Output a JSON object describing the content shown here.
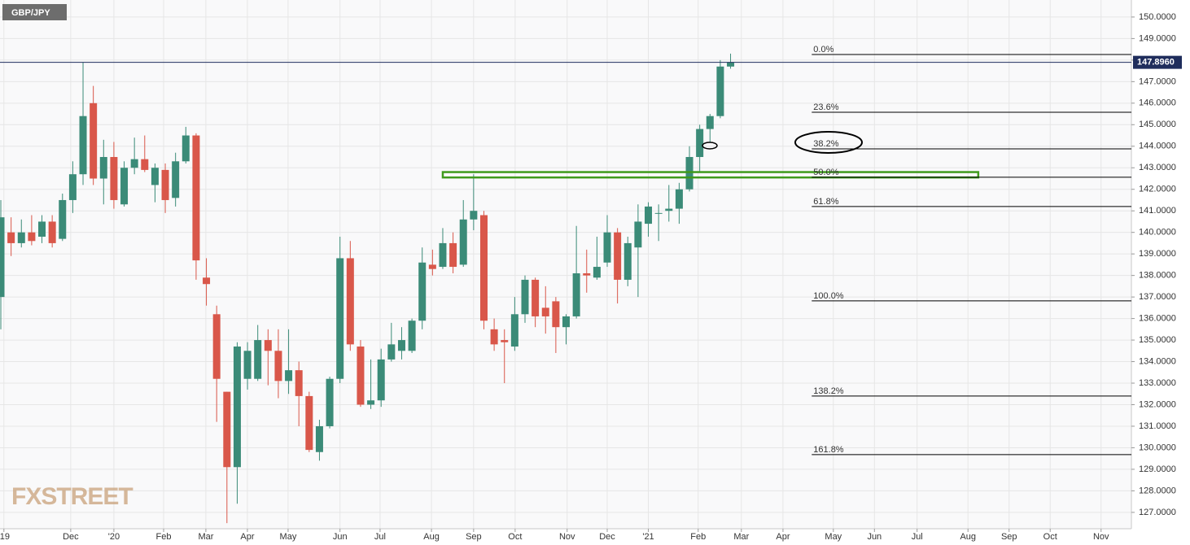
{
  "chart_data": {
    "type": "candlestick",
    "title": "GBP/JPY",
    "watermark": "FXSTREET",
    "up_color": "#3b8b78",
    "down_color": "#d9574a",
    "open": [
      137.0,
      140.0,
      139.5,
      140.0,
      139.8,
      140.5,
      139.7,
      141.5,
      142.7,
      146.0,
      142.5,
      143.5,
      141.3,
      143.0,
      143.4,
      142.2,
      142.9,
      141.6,
      143.3,
      144.5,
      137.9,
      136.2,
      132.6,
      129.1,
      133.2,
      133.2,
      135.0,
      134.5,
      133.1,
      133.6,
      132.4,
      129.8,
      131.0,
      133.2,
      138.8,
      134.7,
      132.0,
      132.2,
      134.1,
      134.5,
      134.5,
      135.9,
      138.5,
      138.4,
      139.5,
      138.5,
      140.6,
      140.8,
      135.5,
      135.0,
      134.7,
      136.2,
      137.8,
      136.5,
      136.8,
      135.6,
      136.1,
      138.1,
      137.9,
      138.6,
      140.0,
      137.8,
      139.3,
      140.4,
      140.9,
      141.0,
      141.1,
      142.0,
      143.5,
      144.8,
      145.4,
      147.7
    ],
    "high": [
      141.5,
      140.7,
      140.6,
      140.8,
      140.8,
      140.8,
      141.8,
      143.3,
      147.9,
      146.8,
      144.3,
      144.2,
      143.3,
      144.4,
      144.5,
      143.2,
      143.2,
      143.7,
      144.9,
      144.6,
      138.8,
      136.6,
      132.6,
      134.9,
      134.9,
      135.7,
      135.5,
      135.5,
      135.5,
      134.0,
      132.6,
      131.3,
      133.3,
      139.8,
      139.6,
      135.0,
      134.1,
      134.6,
      135.8,
      135.6,
      136.0,
      139.3,
      139.2,
      140.2,
      140.0,
      141.5,
      142.7,
      141.0,
      136.0,
      135.5,
      137.0,
      138.0,
      137.9,
      137.5,
      137.0,
      136.2,
      140.3,
      139.2,
      139.8,
      140.8,
      140.2,
      139.8,
      141.3,
      141.4,
      141.3,
      142.2,
      142.3,
      144.0,
      145.0,
      145.5,
      148.0,
      148.3
    ],
    "low": [
      135.5,
      138.9,
      139.3,
      139.4,
      139.5,
      139.3,
      139.6,
      140.9,
      142.2,
      142.2,
      141.3,
      141.1,
      141.2,
      142.7,
      142.8,
      141.4,
      140.9,
      141.2,
      143.2,
      137.8,
      136.6,
      131.2,
      126.5,
      127.4,
      132.7,
      133.1,
      132.9,
      132.3,
      132.5,
      131.0,
      129.8,
      129.4,
      130.9,
      133.0,
      134.5,
      131.9,
      131.8,
      131.9,
      134.0,
      134.1,
      134.4,
      135.5,
      138.0,
      138.3,
      138.1,
      138.4,
      140.1,
      135.5,
      134.5,
      133.0,
      134.5,
      135.8,
      135.6,
      135.3,
      134.4,
      134.8,
      136.0,
      137.2,
      137.8,
      138.4,
      136.7,
      137.5,
      137.0,
      139.8,
      139.6,
      140.5,
      140.4,
      141.9,
      142.8,
      144.2,
      145.3,
      147.6
    ],
    "close": [
      140.7,
      139.5,
      140.0,
      139.6,
      140.5,
      139.5,
      141.5,
      142.7,
      145.4,
      142.5,
      143.5,
      141.5,
      143.0,
      143.4,
      142.9,
      143.0,
      141.5,
      143.3,
      144.5,
      138.7,
      137.6,
      133.2,
      129.1,
      134.7,
      134.5,
      135.0,
      134.5,
      133.1,
      133.6,
      132.4,
      129.9,
      131.0,
      133.2,
      138.8,
      134.8,
      132.0,
      132.2,
      134.1,
      134.8,
      135.0,
      135.9,
      138.6,
      138.3,
      139.5,
      138.4,
      140.6,
      141.0,
      135.9,
      134.8,
      134.9,
      136.2,
      137.8,
      136.1,
      136.1,
      135.6,
      136.1,
      138.1,
      138.0,
      138.4,
      140.0,
      137.8,
      139.5,
      140.5,
      141.2,
      140.9,
      141.1,
      142.0,
      143.5,
      144.8,
      145.4,
      147.7,
      147.9
    ],
    "xlim": [
      -0.08,
      110
    ],
    "xticks": [
      {
        "value": 0.3,
        "label": "'19"
      },
      {
        "value": 6.8,
        "label": "Dec"
      },
      {
        "value": 11.0,
        "label": "'20"
      },
      {
        "value": 15.84,
        "label": "Feb"
      },
      {
        "value": 19.95,
        "label": "Mar"
      },
      {
        "value": 23.99,
        "label": "Apr"
      },
      {
        "value": 27.95,
        "label": "May"
      },
      {
        "value": 33.0,
        "label": "Jun"
      },
      {
        "value": 36.9,
        "label": "Jul"
      },
      {
        "value": 41.9,
        "label": "Aug"
      },
      {
        "value": 46.0,
        "label": "Sep"
      },
      {
        "value": 50.04,
        "label": "Oct"
      },
      {
        "value": 55.1,
        "label": "Nov"
      },
      {
        "value": 59.0,
        "label": "Dec"
      },
      {
        "value": 63.0,
        "label": "'21"
      },
      {
        "value": 67.85,
        "label": "Feb"
      },
      {
        "value": 72.05,
        "label": "Mar"
      },
      {
        "value": 76.1,
        "label": "Apr"
      },
      {
        "value": 81.0,
        "label": "May"
      },
      {
        "value": 85.0,
        "label": "Jun"
      },
      {
        "value": 89.15,
        "label": "Jul"
      },
      {
        "value": 94.1,
        "label": "Aug"
      },
      {
        "value": 98.1,
        "label": "Sep"
      },
      {
        "value": 102.1,
        "label": "Oct"
      },
      {
        "value": 107.05,
        "label": "Nov"
      }
    ],
    "ylim": [
      126.24,
      150.79
    ],
    "yticks": [
      {
        "value": 127,
        "label": "127.0000"
      },
      {
        "value": 128,
        "label": "128.0000"
      },
      {
        "value": 129,
        "label": "129.0000"
      },
      {
        "value": 130,
        "label": "130.0000"
      },
      {
        "value": 131,
        "label": "131.0000"
      },
      {
        "value": 132,
        "label": "132.0000"
      },
      {
        "value": 133,
        "label": "133.0000"
      },
      {
        "value": 134,
        "label": "134.0000"
      },
      {
        "value": 135,
        "label": "135.0000"
      },
      {
        "value": 136,
        "label": "136.0000"
      },
      {
        "value": 137,
        "label": "137.0000"
      },
      {
        "value": 138,
        "label": "138.0000"
      },
      {
        "value": 139,
        "label": "139.0000"
      },
      {
        "value": 140,
        "label": "140.0000"
      },
      {
        "value": 141,
        "label": "141.0000"
      },
      {
        "value": 142,
        "label": "142.0000"
      },
      {
        "value": 143,
        "label": "143.0000"
      },
      {
        "value": 144,
        "label": "144.0000"
      },
      {
        "value": 145,
        "label": "145.0000"
      },
      {
        "value": 146,
        "label": "146.0000"
      },
      {
        "value": 147,
        "label": "147.0000"
      },
      {
        "value": 148,
        "label": "148.0000"
      },
      {
        "value": 149,
        "label": "149.0000"
      },
      {
        "value": 150,
        "label": "150.0000"
      }
    ],
    "grid": true,
    "last_price": {
      "value": 147.896,
      "label": "147.8960"
    },
    "fib_start": 78.9,
    "fib_levels": [
      {
        "label": "0.0%",
        "value": 148.26
      },
      {
        "label": "23.6%",
        "value": 145.58
      },
      {
        "label": "38.2%",
        "value": 143.88
      },
      {
        "label": "50.0%",
        "value": 142.56
      },
      {
        "label": "61.8%",
        "value": 141.2
      },
      {
        "label": "100.0%",
        "value": 136.82
      },
      {
        "label": "138.2%",
        "value": 132.4
      },
      {
        "label": "161.8%",
        "value": 129.68
      }
    ],
    "zone": {
      "x": [
        43.0,
        95.1
      ],
      "y": [
        142.55,
        142.8
      ],
      "color": "#3f9a1c"
    }
  }
}
